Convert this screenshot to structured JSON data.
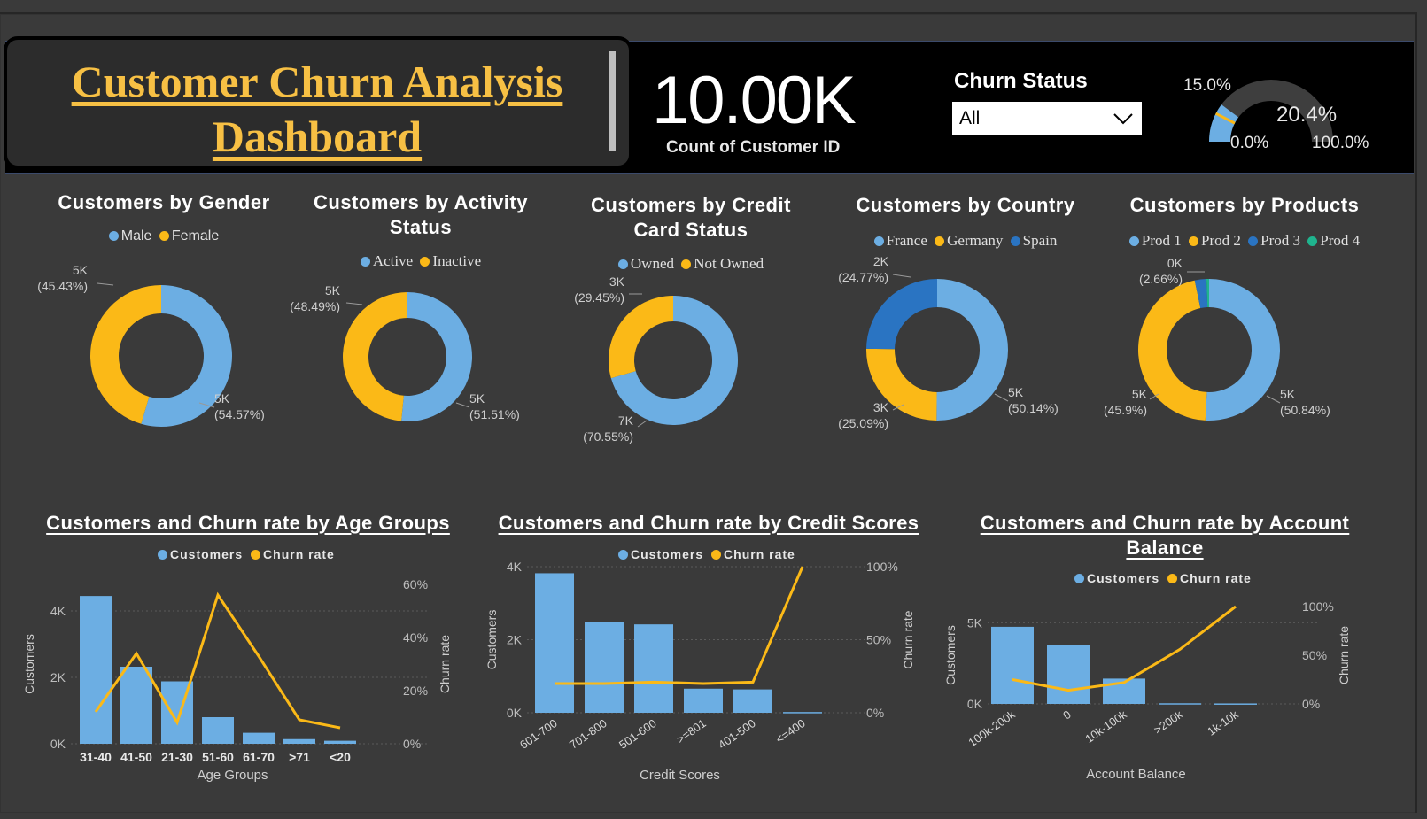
{
  "colors": {
    "blue": "#6caee3",
    "yellow": "#fbb917",
    "darkblue": "#2a74c2",
    "teal": "#1fb48e",
    "bg": "#3a3a3a",
    "accent_title": "#f7c044"
  },
  "header": {
    "title_line1": "Customer Churn  Analysis",
    "title_line2": "Dashboard",
    "kpi_value": "10.00K",
    "kpi_label": "Count of Customer ID",
    "slicer_title": "Churn Status",
    "slicer_value": "All",
    "gauge": {
      "value_label": "20.4%",
      "target_label": "15.0%",
      "min_label": "0.0%",
      "max_label": "100.0%",
      "value": 20.4,
      "target": 15.0,
      "min": 0,
      "max": 100
    }
  },
  "chart_data": [
    {
      "type": "pie",
      "id": "gender",
      "title": "Customers by Gender",
      "legend": [
        "Male",
        "Female"
      ],
      "slices": [
        {
          "name": "Male",
          "value": 5457,
          "label": "5K",
          "pct": "(54.57%)",
          "color": "#6caee3"
        },
        {
          "name": "Female",
          "value": 4543,
          "label": "5K",
          "pct": "(45.43%)",
          "color": "#fbb917"
        }
      ]
    },
    {
      "type": "pie",
      "id": "activity",
      "title": "Customers by Activity Status",
      "legend": [
        "Active",
        "Inactive"
      ],
      "slices": [
        {
          "name": "Active",
          "value": 5151,
          "label": "5K",
          "pct": "(51.51%)",
          "color": "#6caee3"
        },
        {
          "name": "Inactive",
          "value": 4849,
          "label": "5K",
          "pct": "(48.49%)",
          "color": "#fbb917"
        }
      ]
    },
    {
      "type": "pie",
      "id": "credit_card",
      "title": "Customers by Credit Card Status",
      "legend": [
        "Owned",
        "Not Owned"
      ],
      "slices": [
        {
          "name": "Owned",
          "value": 7055,
          "label": "7K",
          "pct": "(70.55%)",
          "color": "#6caee3"
        },
        {
          "name": "Not Owned",
          "value": 2945,
          "label": "3K",
          "pct": "(29.45%)",
          "color": "#fbb917"
        }
      ]
    },
    {
      "type": "pie",
      "id": "country",
      "title": "Customers by Country",
      "legend": [
        "France",
        "Germany",
        "Spain"
      ],
      "slices": [
        {
          "name": "France",
          "value": 5014,
          "label": "5K",
          "pct": "(50.14%)",
          "color": "#6caee3"
        },
        {
          "name": "Germany",
          "value": 2509,
          "label": "3K",
          "pct": "(25.09%)",
          "color": "#fbb917"
        },
        {
          "name": "Spain",
          "value": 2477,
          "label": "2K",
          "pct": "(24.77%)",
          "color": "#2a74c2"
        }
      ]
    },
    {
      "type": "pie",
      "id": "products",
      "title": "Customers by Products",
      "legend": [
        "Prod 1",
        "Prod 2",
        "Prod 3",
        "Prod 4"
      ],
      "slices": [
        {
          "name": "Prod 1",
          "value": 5084,
          "label": "5K",
          "pct": "(50.84%)",
          "color": "#6caee3"
        },
        {
          "name": "Prod 2",
          "value": 4590,
          "label": "5K",
          "pct": "(45.9%)",
          "color": "#fbb917"
        },
        {
          "name": "Prod 3",
          "value": 266,
          "label": "0K",
          "pct": "(2.66%)",
          "color": "#2a74c2"
        },
        {
          "name": "Prod 4",
          "value": 60,
          "label": "",
          "pct": "",
          "color": "#1fb48e"
        }
      ]
    },
    {
      "type": "bar",
      "id": "age",
      "title": "Customers and Churn rate by Age Groups",
      "legend": [
        "Customers",
        "Churn rate"
      ],
      "categories": [
        "31-40",
        "41-50",
        "21-30",
        "51-60",
        "61-70",
        ">71",
        "<20"
      ],
      "series": [
        {
          "name": "Customers",
          "values": [
            4450,
            2320,
            1880,
            800,
            330,
            140,
            90
          ]
        },
        {
          "name": "Churn rate",
          "values": [
            12,
            34,
            8,
            56,
            33,
            9,
            6
          ]
        }
      ],
      "xlabel": "Age Groups",
      "ylabel": "Customers",
      "y2label": "Churn rate",
      "yticks": [
        "4K",
        "2K",
        "0K"
      ],
      "y2ticks": [
        "60%",
        "40%",
        "20%",
        "0%"
      ],
      "ylim": [
        0,
        4800
      ],
      "y2lim": [
        0,
        60
      ]
    },
    {
      "type": "bar",
      "id": "credit",
      "title": "Customers and Churn rate by Credit Scores",
      "legend": [
        "Customers",
        "Churn rate"
      ],
      "categories": [
        "601-700",
        "701-800",
        "501-600",
        ">=801",
        "401-500",
        "<=400"
      ],
      "series": [
        {
          "name": "Customers",
          "values": [
            3820,
            2480,
            2420,
            660,
            640,
            20
          ]
        },
        {
          "name": "Churn rate",
          "values": [
            20,
            20,
            21,
            20,
            21,
            100
          ]
        }
      ],
      "xlabel": "Credit Scores",
      "ylabel": "Customers",
      "y2label": "Churn rate",
      "yticks": [
        "4K",
        "2K",
        "0K"
      ],
      "y2ticks": [
        "100%",
        "50%",
        "0%"
      ],
      "ylim": [
        0,
        4000
      ],
      "y2lim": [
        0,
        100
      ]
    },
    {
      "type": "bar",
      "id": "balance",
      "title": "Customers and Churn rate by Account Balance",
      "legend": [
        "Customers",
        "Churn rate"
      ],
      "categories": [
        "100k-200k",
        "0",
        "10k-100k",
        ">200k",
        "1k-10k"
      ],
      "series": [
        {
          "name": "Customers",
          "values": [
            4750,
            3620,
            1560,
            40,
            30
          ]
        },
        {
          "name": "Churn rate",
          "values": [
            25,
            14,
            22,
            56,
            100
          ]
        }
      ],
      "xlabel": "Account Balance",
      "ylabel": "Customers",
      "y2label": "Churn rate",
      "yticks": [
        "5K",
        "0K"
      ],
      "y2ticks": [
        "100%",
        "50%",
        "0%"
      ],
      "ylim": [
        0,
        6000
      ],
      "y2lim": [
        0,
        100
      ]
    }
  ]
}
